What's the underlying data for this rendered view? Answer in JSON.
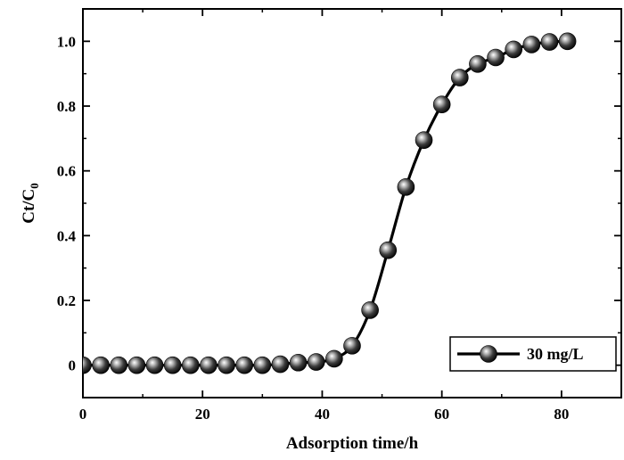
{
  "chart_data": {
    "type": "line",
    "xlabel": "Adsorption time/h",
    "ylabel_main": "Ct/C",
    "ylabel_sub": "0",
    "xlim": [
      0,
      90
    ],
    "ylim": [
      -0.1,
      1.1
    ],
    "xticks": [
      0,
      20,
      40,
      60,
      80
    ],
    "xtick_labels": [
      "0",
      "20",
      "40",
      "60",
      "80"
    ],
    "yticks": [
      0,
      0.2,
      0.4,
      0.6,
      0.8,
      1.0
    ],
    "ytick_labels": [
      "0",
      "0.2",
      "0.4",
      "0.6",
      "0.8",
      "1.0"
    ],
    "grid": false,
    "legend_position": "bottom-right",
    "series": [
      {
        "name": "30 mg/L",
        "color": "#000000",
        "marker": "sphere",
        "x": [
          0,
          3,
          6,
          9,
          12,
          15,
          18,
          21,
          24,
          27,
          30,
          33,
          36,
          39,
          42,
          45,
          48,
          51,
          54,
          57,
          60,
          63,
          66,
          69,
          72,
          75,
          78,
          81
        ],
        "y": [
          0,
          0,
          0,
          0,
          0,
          0,
          0,
          0,
          0,
          0,
          0,
          0.003,
          0.008,
          0.01,
          0.02,
          0.06,
          0.17,
          0.355,
          0.55,
          0.695,
          0.805,
          0.888,
          0.93,
          0.95,
          0.975,
          0.99,
          0.998,
          1.0
        ]
      }
    ]
  }
}
